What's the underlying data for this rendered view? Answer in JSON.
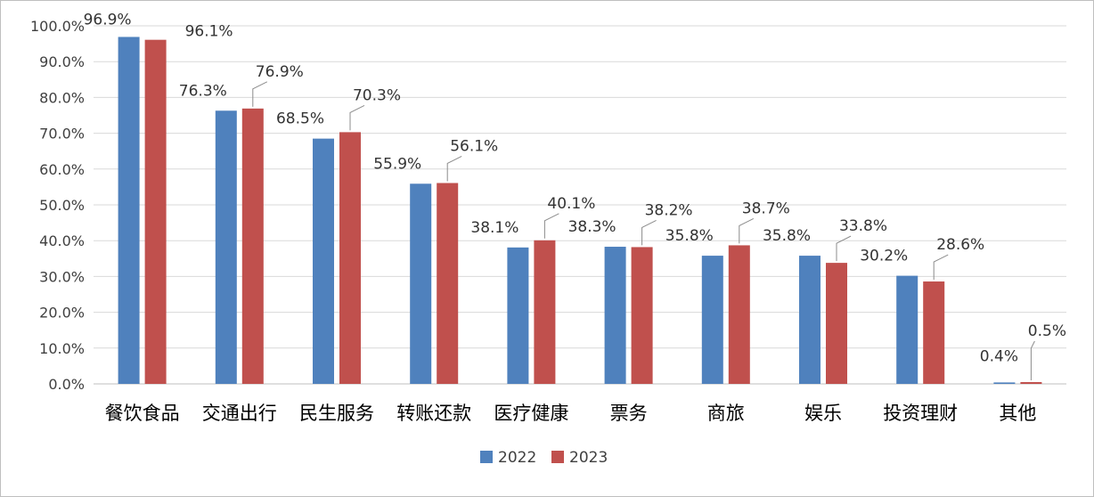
{
  "chart_data": {
    "type": "bar",
    "categories": [
      "餐饮食品",
      "交通出行",
      "民生服务",
      "转账还款",
      "医疗健康",
      "票务",
      "商旅",
      "娱乐",
      "投资理财",
      "其他"
    ],
    "series": [
      {
        "name": "2022",
        "color": "#4f81bd",
        "values": [
          96.9,
          76.3,
          68.5,
          55.9,
          38.1,
          38.3,
          35.8,
          35.8,
          30.2,
          0.4
        ],
        "labels": [
          "96.9%",
          "76.3%",
          "68.5%",
          "55.9%",
          "38.1%",
          "38.3%",
          "35.8%",
          "35.8%",
          "30.2%",
          "0.4%"
        ]
      },
      {
        "name": "2023",
        "color": "#c0504d",
        "values": [
          96.1,
          76.9,
          70.3,
          56.1,
          40.1,
          38.2,
          38.7,
          33.8,
          28.6,
          0.5
        ],
        "labels": [
          "96.1%",
          "76.9%",
          "70.3%",
          "56.1%",
          "40.1%",
          "38.2%",
          "38.7%",
          "33.8%",
          "28.6%",
          "0.5%"
        ]
      }
    ],
    "y_ticks": [
      "0.0%",
      "10.0%",
      "20.0%",
      "30.0%",
      "40.0%",
      "50.0%",
      "60.0%",
      "70.0%",
      "80.0%",
      "90.0%",
      "100.0%"
    ],
    "ylim": [
      0,
      100
    ],
    "grid": true,
    "legend_position": "bottom"
  }
}
